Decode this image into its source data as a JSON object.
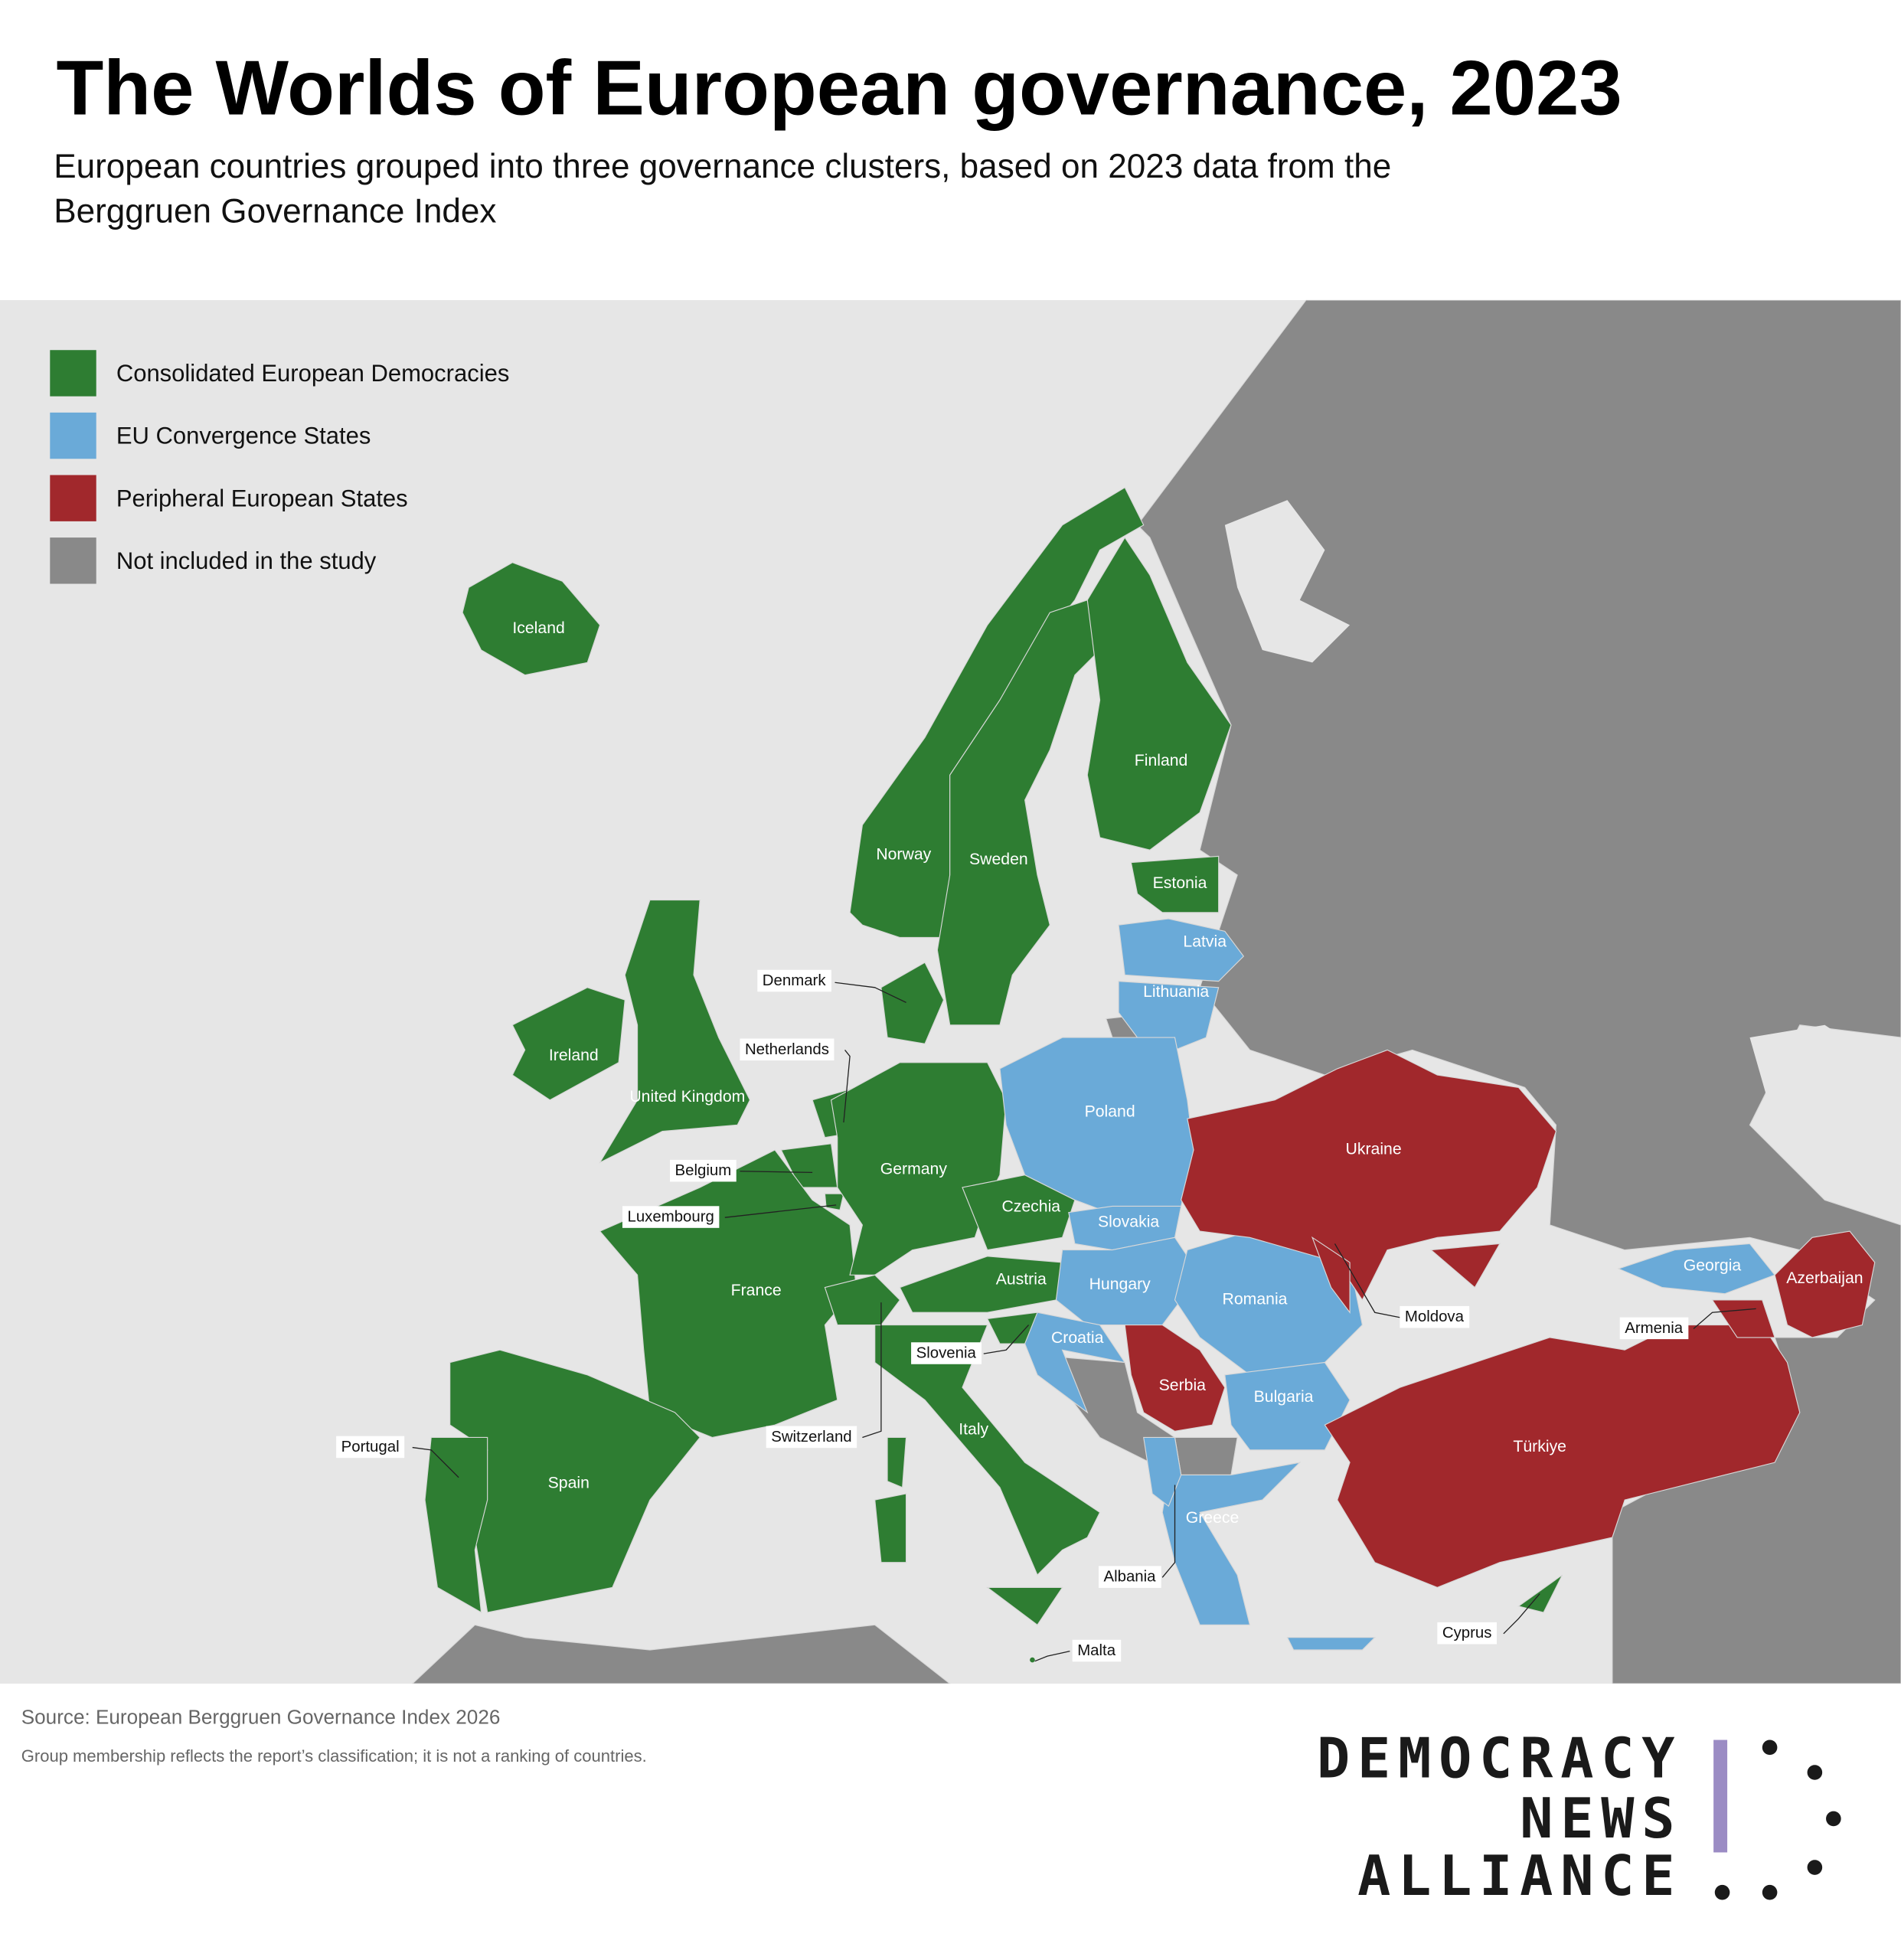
{
  "title": "The Worlds of European governance, 2023",
  "subtitle": "European countries grouped into three governance clusters, based on 2023 data from the Berggruen Governance Index",
  "groups": [
    {
      "label": "Consolidated European Democracies",
      "color": "#2e7d32",
      "countries": [
        "Iceland",
        "Norway",
        "Sweden",
        "Finland",
        "Estonia",
        "Denmark",
        "Ireland",
        "United Kingdom",
        "Netherlands",
        "Belgium",
        "Luxembourg",
        "Germany",
        "France",
        "Czechia",
        "Austria",
        "Switzerland",
        "Slovenia",
        "Italy",
        "Portugal",
        "Spain",
        "Malta",
        "Cyprus"
      ]
    },
    {
      "label": "EU Convergence States",
      "color": "#6aaad8",
      "countries": [
        "Latvia",
        "Lithuania",
        "Poland",
        "Slovakia",
        "Hungary",
        "Croatia",
        "Romania",
        "Bulgaria",
        "Greece",
        "Albania",
        "Georgia"
      ]
    },
    {
      "label": "Peripheral European States",
      "color": "#a1282c",
      "countries": [
        "Ukraine",
        "Moldova",
        "Serbia",
        "Türkiye",
        "Armenia",
        "Azerbaijan"
      ]
    },
    {
      "label": "Not included in the study",
      "color": "#898989"
    }
  ],
  "source": "Source: European Berggruen Governance Index 2026",
  "note": "Group membership reflects the report’s classification; it is not a ranking of countries.",
  "logo": [
    "DEMOCRACY",
    "NEWS",
    "ALLIANCE"
  ]
}
